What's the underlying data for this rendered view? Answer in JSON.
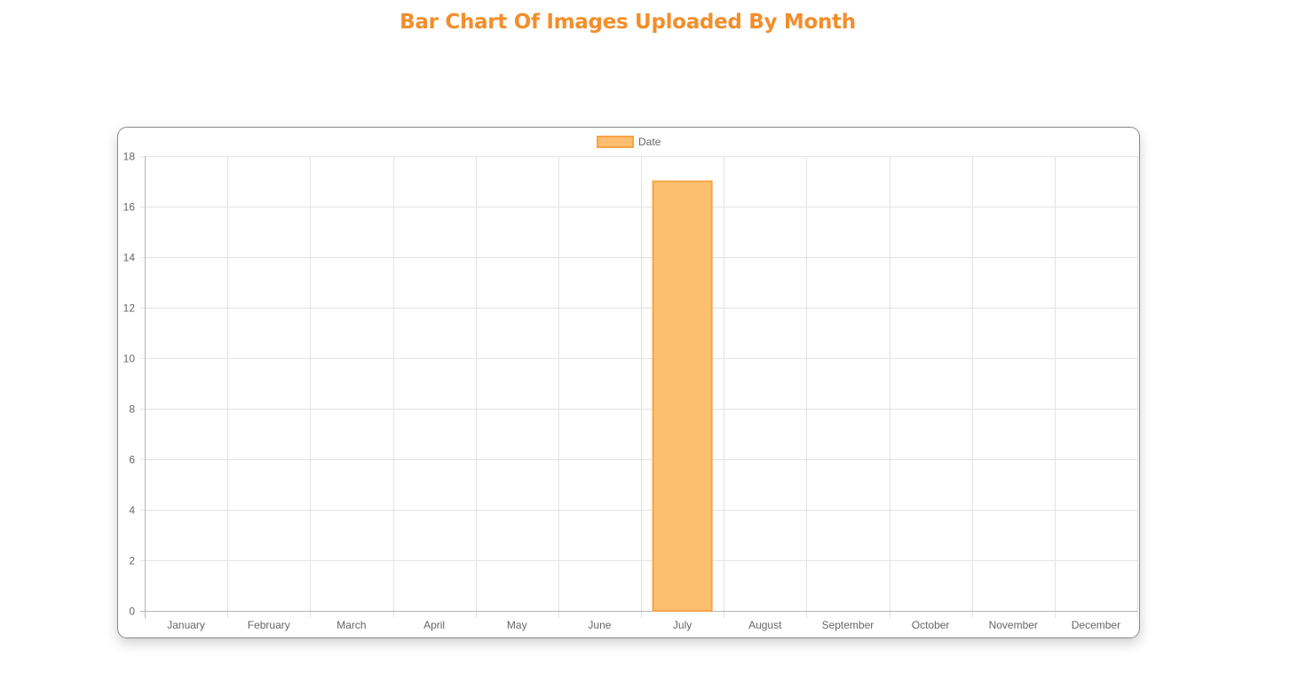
{
  "page": {
    "title": "Bar Chart Of Images Uploaded By Month"
  },
  "colors": {
    "title": "#f28e2b",
    "bar_fill": "#fdbf6f",
    "bar_border": "#f5a447",
    "grid": "#e3e3e3",
    "axis": "#b5b5b5",
    "text": "#666666"
  },
  "chart_data": {
    "type": "bar",
    "title": "",
    "xlabel": "",
    "ylabel": "",
    "categories": [
      "January",
      "February",
      "March",
      "April",
      "May",
      "June",
      "July",
      "August",
      "September",
      "October",
      "November",
      "December"
    ],
    "series": [
      {
        "name": "Date",
        "values": [
          0,
          0,
          0,
          0,
          0,
          0,
          17,
          0,
          0,
          0,
          0,
          0
        ]
      }
    ],
    "ylim": [
      0,
      18
    ],
    "yticks": [
      0,
      2,
      4,
      6,
      8,
      10,
      12,
      14,
      16,
      18
    ],
    "grid": true,
    "legend_position": "top"
  }
}
